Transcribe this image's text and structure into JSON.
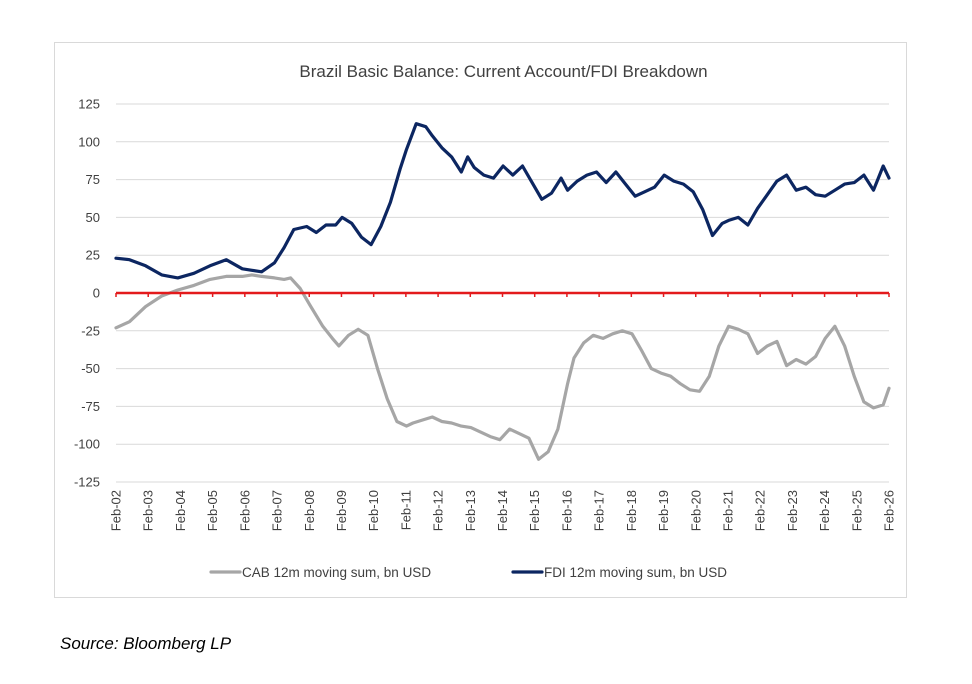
{
  "chart_data": {
    "type": "line",
    "title": "Brazil Basic Balance: Current Account/FDI Breakdown",
    "xlabel": "",
    "ylabel": "",
    "ylim": [
      -125,
      125
    ],
    "yticks": [
      125,
      100,
      75,
      50,
      25,
      0,
      -25,
      -50,
      -75,
      -100,
      -125
    ],
    "x_range": [
      2002.08,
      2026.08
    ],
    "xticks": [
      "Feb-02",
      "Feb-03",
      "Feb-04",
      "Feb-05",
      "Feb-06",
      "Feb-07",
      "Feb-08",
      "Feb-09",
      "Feb-10",
      "Feb-11",
      "Feb-12",
      "Feb-13",
      "Feb-14",
      "Feb-15",
      "Feb-16",
      "Feb-17",
      "Feb-18",
      "Feb-19",
      "Feb-20",
      "Feb-21",
      "Feb-22",
      "Feb-23",
      "Feb-24",
      "Feb-25",
      "Feb-26"
    ],
    "zero_line_color": "#e31a1c",
    "grid": true,
    "legend_position": "bottom",
    "series": [
      {
        "name": "CAB 12m moving sum, bn USD",
        "color": "#a6a6a6",
        "x": [
          2002.08,
          2002.5,
          2003.0,
          2003.5,
          2004.0,
          2004.5,
          2005.0,
          2005.5,
          2006.0,
          2006.3,
          2006.6,
          2007.0,
          2007.3,
          2007.5,
          2007.8,
          2008.1,
          2008.5,
          2008.8,
          2009.0,
          2009.3,
          2009.6,
          2009.9,
          2010.2,
          2010.5,
          2010.8,
          2011.1,
          2011.3,
          2011.6,
          2011.9,
          2012.2,
          2012.5,
          2012.8,
          2013.1,
          2013.4,
          2013.7,
          2014.0,
          2014.3,
          2014.6,
          2014.9,
          2015.2,
          2015.5,
          2015.8,
          2016.1,
          2016.3,
          2016.6,
          2016.9,
          2017.2,
          2017.5,
          2017.8,
          2018.1,
          2018.4,
          2018.7,
          2019.0,
          2019.3,
          2019.6,
          2019.9,
          2020.2,
          2020.5,
          2020.8,
          2021.1,
          2021.4,
          2021.7,
          2022.0,
          2022.3,
          2022.6,
          2022.9,
          2023.2,
          2023.5,
          2023.8,
          2024.1,
          2024.4,
          2024.7,
          2025.0,
          2025.3,
          2025.6,
          2025.9,
          2026.08
        ],
        "values": [
          -23,
          -19,
          -9,
          -2,
          2,
          5,
          9,
          11,
          11,
          12,
          11,
          10,
          9,
          10,
          3,
          -8,
          -22,
          -30,
          -35,
          -28,
          -24,
          -28,
          -50,
          -70,
          -85,
          -88,
          -86,
          -84,
          -82,
          -85,
          -86,
          -88,
          -89,
          -92,
          -95,
          -97,
          -90,
          -93,
          -96,
          -110,
          -105,
          -90,
          -60,
          -43,
          -33,
          -28,
          -30,
          -27,
          -25,
          -27,
          -38,
          -50,
          -53,
          -55,
          -60,
          -64,
          -65,
          -55,
          -35,
          -22,
          -24,
          -27,
          -40,
          -35,
          -32,
          -48,
          -44,
          -47,
          -42,
          -30,
          -22,
          -35,
          -55,
          -72,
          -76,
          -74,
          -63
        ]
      },
      {
        "name": "FDI 12m moving sum, bn USD",
        "color": "#0c2661",
        "x": [
          2002.08,
          2002.5,
          2003.0,
          2003.5,
          2004.0,
          2004.5,
          2005.0,
          2005.5,
          2006.0,
          2006.3,
          2006.6,
          2007.0,
          2007.3,
          2007.6,
          2008.0,
          2008.3,
          2008.6,
          2008.9,
          2009.1,
          2009.4,
          2009.7,
          2010.0,
          2010.3,
          2010.6,
          2010.9,
          2011.1,
          2011.4,
          2011.7,
          2011.9,
          2012.2,
          2012.5,
          2012.8,
          2013.0,
          2013.2,
          2013.5,
          2013.8,
          2014.1,
          2014.4,
          2014.7,
          2015.0,
          2015.3,
          2015.6,
          2015.9,
          2016.1,
          2016.4,
          2016.7,
          2017.0,
          2017.3,
          2017.6,
          2017.9,
          2018.2,
          2018.5,
          2018.8,
          2019.1,
          2019.4,
          2019.7,
          2020.0,
          2020.3,
          2020.6,
          2020.9,
          2021.1,
          2021.4,
          2021.7,
          2022.0,
          2022.3,
          2022.6,
          2022.9,
          2023.2,
          2023.5,
          2023.8,
          2024.1,
          2024.4,
          2024.7,
          2025.0,
          2025.3,
          2025.6,
          2025.9,
          2026.08
        ],
        "values": [
          23,
          22,
          18,
          12,
          10,
          13,
          18,
          22,
          16,
          15,
          14,
          20,
          30,
          42,
          44,
          40,
          45,
          45,
          50,
          46,
          37,
          32,
          44,
          60,
          82,
          95,
          112,
          110,
          104,
          96,
          90,
          80,
          90,
          83,
          78,
          76,
          84,
          78,
          84,
          73,
          62,
          66,
          76,
          68,
          74,
          78,
          80,
          73,
          80,
          72,
          64,
          67,
          70,
          78,
          74,
          72,
          67,
          55,
          38,
          46,
          48,
          50,
          45,
          56,
          65,
          74,
          78,
          68,
          70,
          65,
          64,
          68,
          72,
          73,
          78,
          68,
          84,
          76
        ]
      }
    ]
  },
  "source": "Source: Bloomberg LP"
}
